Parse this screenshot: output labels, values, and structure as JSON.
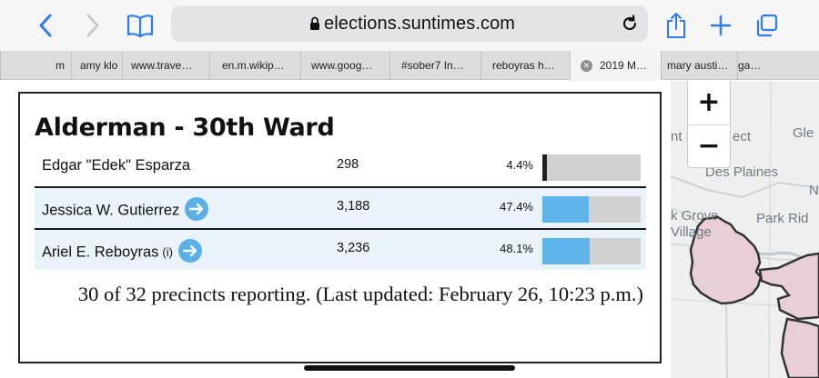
{
  "browser": {
    "url": "elections.suntimes.com",
    "tabs": [
      "m",
      "amy klo",
      "www.trave…",
      "en.m.wikip…",
      "www.goog…",
      "#sober7 In…",
      "reboyras h…",
      "2019 M…",
      "mary austi…",
      "ga…"
    ],
    "active_tab_index": 7
  },
  "map": {
    "labels": [
      "nt H",
      "ect",
      "Gle",
      "Des Plaines",
      "N",
      "k Grove",
      "Park Rid",
      "Village"
    ],
    "zoom_in": "+",
    "zoom_out": "−"
  },
  "race": {
    "title": "Alderman - 30th Ward",
    "candidates": [
      {
        "name": "Edgar \"Edek\" Esparza",
        "incumbent_tag": "",
        "votes": "298",
        "percent": "4.4%",
        "share": 0.044,
        "winner_arrow": false
      },
      {
        "name": "Jessica W. Gutierrez",
        "incumbent_tag": "",
        "votes": "3,188",
        "percent": "47.4%",
        "share": 0.474,
        "winner_arrow": true
      },
      {
        "name": "Ariel E. Reboyras",
        "incumbent_tag": "(i)",
        "votes": "3,236",
        "percent": "48.1%",
        "share": 0.481,
        "winner_arrow": true
      }
    ],
    "reporting_note": "30 of 32 precincts reporting. (Last updated: February 26, 10:23 p.m.)"
  },
  "colors": {
    "bar_fill": "#5fb5ea",
    "bar_track": "#d1d1d1",
    "highlight_row": "#e8f3fa",
    "ios_blue": "#2f7bf6"
  }
}
